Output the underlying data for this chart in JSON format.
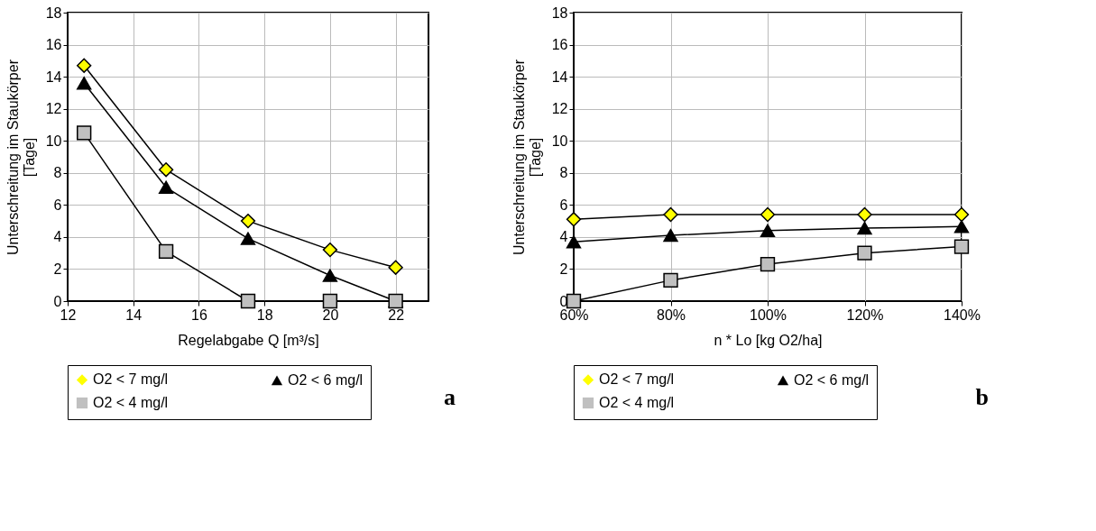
{
  "chart_data": [
    {
      "type": "line",
      "xlabel": "Regelabgabe Q [m³/s]",
      "ylabel": "Unterschreitung im Staukörper\n[Tage]",
      "x": [
        12.5,
        15,
        17.5,
        20,
        22
      ],
      "xlim": [
        12,
        23
      ],
      "xticks": [
        12,
        14,
        16,
        18,
        20,
        22
      ],
      "ylim": [
        0,
        18
      ],
      "yticks": [
        0,
        2,
        4,
        6,
        8,
        10,
        12,
        14,
        16,
        18
      ],
      "grid": true,
      "legend": "bottom",
      "annotations": [
        "a"
      ],
      "series": [
        {
          "name": "O2 < 7 mg/l",
          "color": "#ffff00",
          "marker": "diamond",
          "values": [
            14.7,
            8.2,
            5.0,
            3.2,
            2.1
          ]
        },
        {
          "name": "O2 < 6 mg/l",
          "color": "#000000",
          "marker": "triangle",
          "values": [
            13.6,
            7.1,
            3.9,
            1.6,
            0
          ]
        },
        {
          "name": "O2 < 4 mg/l",
          "color": "#c0c0c0",
          "marker": "square",
          "values": [
            10.5,
            3.1,
            0,
            0,
            0
          ]
        }
      ]
    },
    {
      "type": "line",
      "xlabel": "n * Lo [kg O2/ha]",
      "ylabel": "Unterschreitung im Staukörper\n[Tage]",
      "categories": [
        "60%",
        "80%",
        "100%",
        "120%",
        "140%"
      ],
      "ylim": [
        0,
        18
      ],
      "yticks": [
        0,
        2,
        4,
        6,
        8,
        10,
        12,
        14,
        16,
        18
      ],
      "grid": true,
      "legend": "bottom",
      "annotations": [
        "b"
      ],
      "series": [
        {
          "name": "O2 < 7 mg/l",
          "color": "#ffff00",
          "marker": "diamond",
          "values": [
            5.1,
            5.4,
            5.4,
            5.4,
            5.4
          ]
        },
        {
          "name": "O2 < 6 mg/l",
          "color": "#000000",
          "marker": "triangle",
          "values": [
            3.7,
            4.1,
            4.4,
            4.55,
            4.65
          ]
        },
        {
          "name": "O2 < 4 mg/l",
          "color": "#c0c0c0",
          "marker": "square",
          "values": [
            0,
            1.3,
            2.3,
            3.0,
            3.4
          ]
        }
      ]
    }
  ]
}
